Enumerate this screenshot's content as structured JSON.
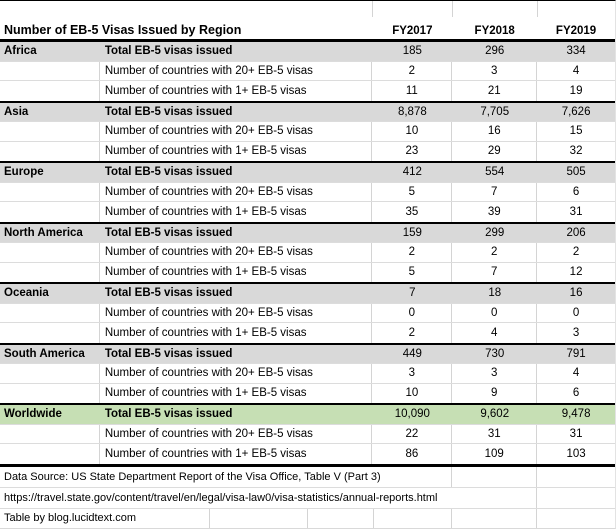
{
  "colors": {
    "total_row_bg": "#D9D9D9",
    "worldwide_total_row_bg": "#C6DFB4",
    "group_separator": "#000000",
    "gridline": "#D4D4D4"
  },
  "chart_data": {
    "type": "table",
    "title": "Number of EB-5 Visas Issued by Region",
    "columns": [
      "FY2017",
      "FY2018",
      "FY2019"
    ],
    "row_labels": [
      "Total EB-5 visas issued",
      "Number of countries with 20+ EB-5 visas",
      "Number of countries with 1+ EB-5 visas"
    ],
    "regions": [
      {
        "name": "Africa",
        "total": [
          185,
          296,
          334
        ],
        "countries_20plus": [
          2,
          3,
          4
        ],
        "countries_1plus": [
          11,
          21,
          19
        ]
      },
      {
        "name": "Asia",
        "total": [
          8878,
          7705,
          7626
        ],
        "countries_20plus": [
          10,
          16,
          15
        ],
        "countries_1plus": [
          23,
          29,
          32
        ]
      },
      {
        "name": "Europe",
        "total": [
          412,
          554,
          505
        ],
        "countries_20plus": [
          5,
          7,
          6
        ],
        "countries_1plus": [
          35,
          39,
          31
        ]
      },
      {
        "name": "North America",
        "total": [
          159,
          299,
          206
        ],
        "countries_20plus": [
          2,
          2,
          2
        ],
        "countries_1plus": [
          5,
          7,
          12
        ]
      },
      {
        "name": "Oceania",
        "total": [
          7,
          18,
          16
        ],
        "countries_20plus": [
          0,
          0,
          0
        ],
        "countries_1plus": [
          2,
          4,
          3
        ]
      },
      {
        "name": "South America",
        "total": [
          449,
          730,
          791
        ],
        "countries_20plus": [
          3,
          3,
          4
        ],
        "countries_1plus": [
          10,
          9,
          6
        ]
      },
      {
        "name": "Worldwide",
        "total": [
          10090,
          9602,
          9478
        ],
        "countries_20plus": [
          22,
          31,
          31
        ],
        "countries_1plus": [
          86,
          109,
          103
        ]
      }
    ],
    "footnotes": [
      "Data Source: US State Department Report of the Visa Office, Table V (Part 3)",
      "https://travel.state.gov/content/travel/en/legal/visa-law0/visa-statistics/annual-reports.html",
      "Table by blog.lucidtext.com"
    ],
    "layout": {
      "grid": true,
      "legend": "none",
      "number_format": "thousands-comma"
    }
  }
}
